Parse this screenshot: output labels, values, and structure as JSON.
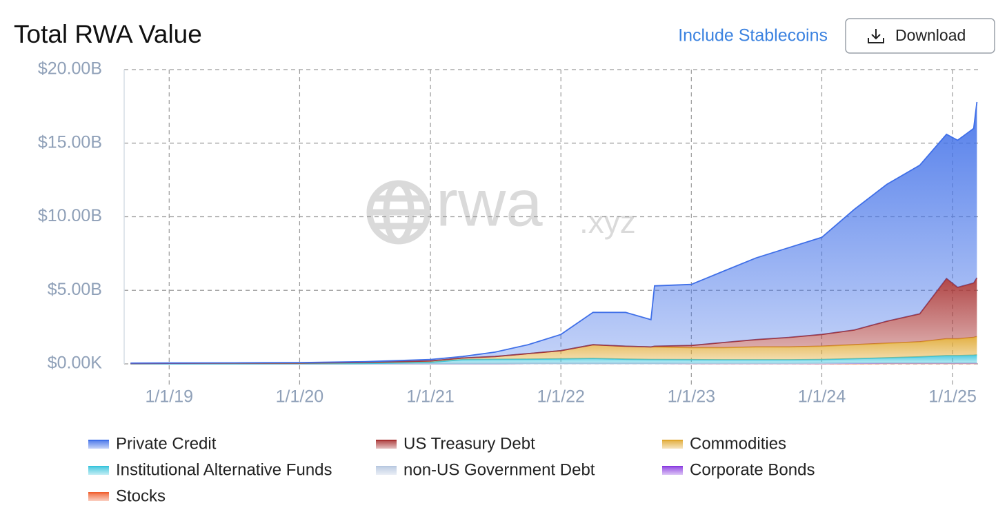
{
  "header": {
    "include_stablecoins": "Include Stablecoins",
    "download": "Download"
  },
  "watermark": {
    "main": "rwa",
    "suffix": ".xyz"
  },
  "chart_data": {
    "type": "stacked_area",
    "title": "Total RWA Value",
    "x": [
      "2018-09-15",
      "2019-01-01",
      "2019-07-01",
      "2020-01-01",
      "2020-07-01",
      "2021-01-01",
      "2021-04-01",
      "2021-07-01",
      "2021-10-01",
      "2022-01-01",
      "2022-04-01",
      "2022-07-01",
      "2022-09-10",
      "2022-09-20",
      "2023-01-01",
      "2023-04-01",
      "2023-07-01",
      "2023-10-01",
      "2024-01-01",
      "2024-04-01",
      "2024-07-01",
      "2024-10-01",
      "2024-12-15",
      "2025-01-15",
      "2025-03-01",
      "2025-03-10"
    ],
    "xlim": [
      "2018-08-28",
      "2025-03-17"
    ],
    "xticks": [
      {
        "value": "2019-01-01",
        "label": "1/1/19"
      },
      {
        "value": "2020-01-01",
        "label": "1/1/20"
      },
      {
        "value": "2021-01-01",
        "label": "1/1/21"
      },
      {
        "value": "2022-01-01",
        "label": "1/1/22"
      },
      {
        "value": "2023-01-01",
        "label": "1/1/23"
      },
      {
        "value": "2024-01-01",
        "label": "1/1/24"
      },
      {
        "value": "2025-01-01",
        "label": "1/1/25"
      }
    ],
    "ylim": [
      0,
      20
    ],
    "yticks": [
      {
        "value": 0,
        "label": "$0.00K"
      },
      {
        "value": 5,
        "label": "$5.00B"
      },
      {
        "value": 10,
        "label": "$10.00B"
      },
      {
        "value": 15,
        "label": "$15.00B"
      },
      {
        "value": 20,
        "label": "$20.00B"
      }
    ],
    "grid": true,
    "series": [
      {
        "name": "Private Credit",
        "color": "#3f6fe8",
        "values": [
          0.02,
          0.02,
          0.02,
          0.03,
          0.05,
          0.1,
          0.1,
          0.3,
          0.6,
          1.1,
          2.2,
          2.3,
          1.85,
          4.1,
          4.15,
          4.85,
          5.55,
          6.1,
          6.6,
          8.2,
          9.3,
          10.1,
          9.8,
          10.0,
          10.5,
          11.95
        ]
      },
      {
        "name": "US Treasury Debt",
        "color": "#a83232",
        "values": [
          0,
          0,
          0,
          0,
          0,
          0,
          0,
          0,
          0,
          0,
          0,
          0,
          0,
          0.05,
          0.15,
          0.35,
          0.5,
          0.65,
          0.8,
          1.0,
          1.5,
          1.9,
          4.1,
          3.5,
          3.7,
          4.0
        ]
      },
      {
        "name": "Commodities",
        "color": "#e0a830",
        "values": [
          0.02,
          0.03,
          0.04,
          0.04,
          0.07,
          0.09,
          0.11,
          0.19,
          0.38,
          0.56,
          0.93,
          0.88,
          0.85,
          0.85,
          0.81,
          0.82,
          0.87,
          0.87,
          0.9,
          0.95,
          0.99,
          1.02,
          1.14,
          1.14,
          1.21,
          1.24
        ]
      },
      {
        "name": "Institutional Alternative Funds",
        "color": "#38c4dc",
        "values": [
          0.01,
          0.01,
          0.01,
          0.02,
          0.03,
          0.1,
          0.28,
          0.3,
          0.3,
          0.32,
          0.35,
          0.3,
          0.28,
          0.28,
          0.26,
          0.25,
          0.25,
          0.25,
          0.26,
          0.3,
          0.35,
          0.42,
          0.5,
          0.5,
          0.53,
          0.55
        ]
      },
      {
        "name": "non-US Government Debt",
        "color": "#b8c8e0",
        "values": [
          0,
          0,
          0,
          0,
          0,
          0,
          0,
          0,
          0,
          0,
          0,
          0,
          0,
          0,
          0,
          0,
          0,
          0,
          0.01,
          0.01,
          0.01,
          0.01,
          0.01,
          0.01,
          0.01,
          0.01
        ]
      },
      {
        "name": "Corporate Bonds",
        "color": "#8a3be0",
        "values": [
          0,
          0,
          0,
          0,
          0,
          0,
          0,
          0,
          0,
          0,
          0,
          0,
          0,
          0,
          0.01,
          0.01,
          0.01,
          0.01,
          0.01,
          0.02,
          0.02,
          0.02,
          0.02,
          0.02,
          0.02,
          0.02
        ]
      },
      {
        "name": "Stocks",
        "color": "#f06030",
        "values": [
          0,
          0,
          0,
          0,
          0,
          0.01,
          0.01,
          0.01,
          0.02,
          0.02,
          0.02,
          0.02,
          0.02,
          0.02,
          0.02,
          0.02,
          0.02,
          0.02,
          0.02,
          0.02,
          0.03,
          0.03,
          0.03,
          0.03,
          0.03,
          0.03
        ]
      }
    ]
  }
}
